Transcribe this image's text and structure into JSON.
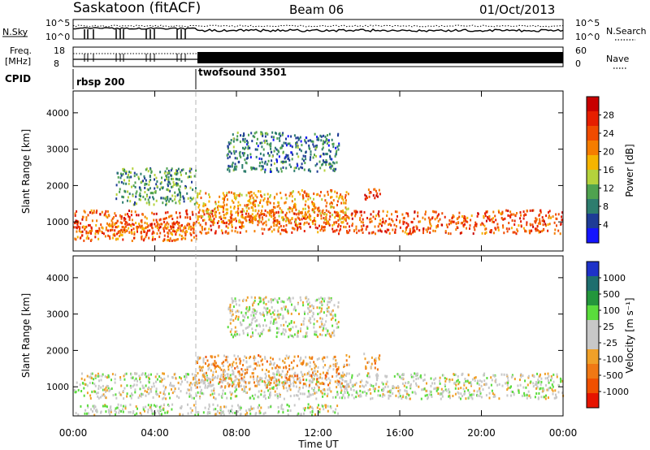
{
  "header": {
    "station": "Saskatoon (fitACF)",
    "beam": "Beam 06",
    "date": "01/Oct/2013"
  },
  "top_panels": {
    "nsky_label": "N.Sky",
    "freq_label_1": "Freq.",
    "freq_label_2": "[MHz]",
    "cpid_label": "CPID",
    "nsearch_label": "N.Search",
    "nave_label": "Nave",
    "noise_ticks": [
      "10^5",
      "10^0"
    ],
    "noise_ticks_right": [
      "10^5",
      "10^0"
    ],
    "freq_ticks": [
      "18",
      "8"
    ],
    "nave_ticks": [
      "60",
      "0"
    ],
    "cpid_segments": [
      {
        "name": "rbsp 200",
        "start_h": 0,
        "end_h": 6
      },
      {
        "name": "twofsound 3501",
        "start_h": 6,
        "end_h": 24
      }
    ]
  },
  "x_axis": {
    "label": "Time UT",
    "ticks": [
      "00:00",
      "04:00",
      "08:00",
      "12:00",
      "16:00",
      "20:00",
      "00:00"
    ],
    "range_h": [
      0,
      24
    ]
  },
  "colors": {
    "power_scale": [
      "#1414ff",
      "#1e3c96",
      "#2d7d6e",
      "#4fa24f",
      "#b4d23c",
      "#f5b400",
      "#f57d00",
      "#f04b00",
      "#e61e00",
      "#c80000"
    ],
    "velocity_scale": [
      "#1e32c8",
      "#1e6e6e",
      "#23963c",
      "#5adc3c",
      "#c8c8c8",
      "#c8c8c8",
      "#f0a028",
      "#f07814",
      "#f05000",
      "#e61400"
    ]
  },
  "chart_data": [
    {
      "type": "heatmap",
      "title": "",
      "xlabel": "",
      "ylabel": "Slant Range [km]",
      "xlim": [
        0,
        24
      ],
      "ylim": [
        200,
        4600
      ],
      "y_ticks": [
        "1000",
        "2000",
        "3000",
        "4000"
      ],
      "colorbar": {
        "label": "Power [dB]",
        "ticks": [
          "28",
          "24",
          "20",
          "16",
          "12",
          "8",
          "4"
        ],
        "range": [
          0,
          32
        ]
      },
      "echo_regions": [
        {
          "name": "main band",
          "x": [
            0.0,
            24.0
          ],
          "y": [
            700,
            1350
          ],
          "value": 24
        },
        {
          "name": "lower band",
          "x": [
            0.0,
            6.0
          ],
          "y": [
            500,
            1000
          ],
          "value": 22
        },
        {
          "name": "upper arc",
          "x": [
            2.0,
            6.0
          ],
          "y": [
            1500,
            2500
          ],
          "value": 10
        },
        {
          "name": "mid region",
          "x": [
            6.0,
            13.5
          ],
          "y": [
            1000,
            1900
          ],
          "value": 20
        },
        {
          "name": "high arc",
          "x": [
            7.5,
            13.0
          ],
          "y": [
            2400,
            3500
          ],
          "value": 8
        },
        {
          "name": "patch",
          "x": [
            14.2,
            15.0
          ],
          "y": [
            1650,
            1950
          ],
          "value": 26
        }
      ]
    },
    {
      "type": "heatmap",
      "title": "",
      "xlabel": "Time UT",
      "ylabel": "Slant Range [km]",
      "xlim": [
        0,
        24
      ],
      "ylim": [
        200,
        4600
      ],
      "y_ticks": [
        "1000",
        "2000",
        "3000",
        "4000"
      ],
      "colorbar": {
        "label": "Velocity [m s⁻¹]",
        "ticks": [
          "1000",
          "500",
          "100",
          "25",
          "-25",
          "-100",
          "-500",
          "-1000"
        ],
        "range": [
          -1000,
          1000
        ]
      },
      "echo_regions": [
        {
          "name": "ground scatter band",
          "x": [
            0.0,
            24.0
          ],
          "y": [
            700,
            1400
          ],
          "value": 0
        },
        {
          "name": "mid region",
          "x": [
            6.0,
            13.5
          ],
          "y": [
            1000,
            1900
          ],
          "value": -300
        },
        {
          "name": "high arc",
          "x": [
            7.5,
            13.0
          ],
          "y": [
            2400,
            3500
          ],
          "value": 0
        },
        {
          "name": "patch",
          "x": [
            14.2,
            15.0
          ],
          "y": [
            1500,
            1950
          ],
          "value": -400
        },
        {
          "name": "near-range strip",
          "x": [
            0.0,
            13.0
          ],
          "y": [
            250,
            550
          ],
          "value": 60
        }
      ]
    }
  ]
}
